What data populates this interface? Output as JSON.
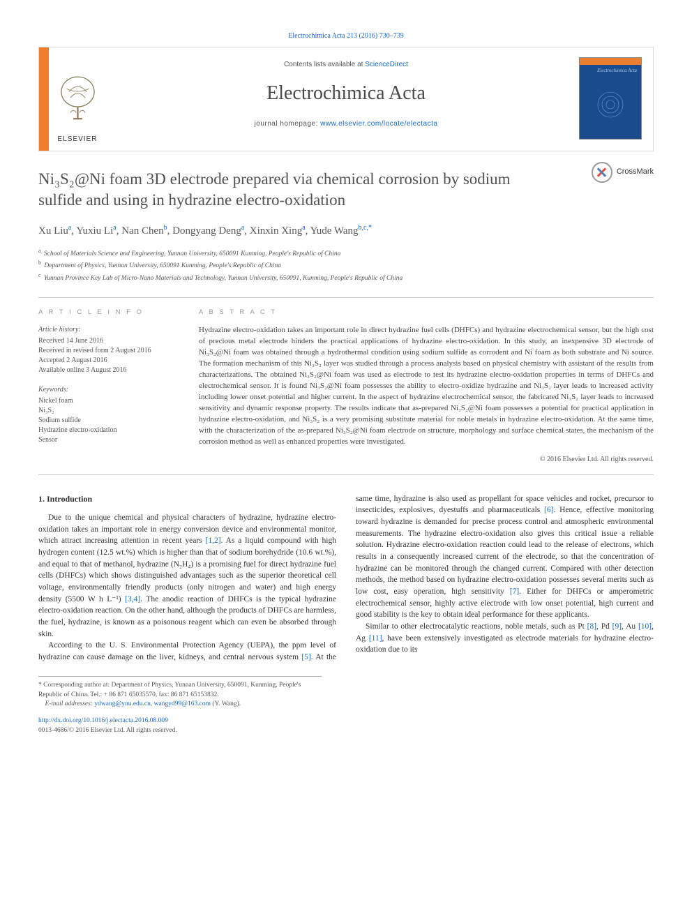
{
  "citation": {
    "prefix": "Electrochimica Acta 213 (2016) 730–739",
    "journal_link_text": "Electrochimica Acta"
  },
  "masthead": {
    "contents_prefix": "Contents lists available at ",
    "contents_link": "ScienceDirect",
    "journal_name": "Electrochimica Acta",
    "homepage_prefix": "journal homepage: ",
    "homepage_url": "www.elsevier.com/locate/electacta",
    "publisher_logo_name": "ELSEVIER",
    "cover_title": "Electrochimica Acta"
  },
  "crossmark": {
    "label": "CrossMark"
  },
  "article": {
    "title": "Ni₃S₂@Ni foam 3D electrode prepared via chemical corrosion by sodium sulfide and using in hydrazine electro-oxidation",
    "authors_html": "Xu Liu<sup>a</sup>, Yuxiu Li<sup>a</sup>, Nan Chen<sup>b</sup>, Dongyang Deng<sup>a</sup>, Xinxin Xing<sup>a</sup>, Yude Wang<sup>b,c,*</sup>",
    "affiliations": [
      {
        "sup": "a",
        "text": "School of Materials Science and Engineering, Yunnan University, 650091 Kunming, People's Republic of China"
      },
      {
        "sup": "b",
        "text": "Department of Physics, Yunnan University, 650091 Kunming, People's Republic of China"
      },
      {
        "sup": "c",
        "text": "Yunnan Province Key Lab of Micro-Nano Materials and Technology, Yunnan University, 650091, Kunming, People's Republic of China"
      }
    ]
  },
  "info": {
    "heading": "A R T I C L E  I N F O",
    "history_label": "Article history:",
    "history": [
      "Received 14 June 2016",
      "Received in revised form 2 August 2016",
      "Accepted 2 August 2016",
      "Available online 3 August 2016"
    ],
    "keywords_label": "Keywords:",
    "keywords": [
      "Nickel foam",
      "Ni₃S₂",
      "Sodium sulfide",
      "Hydrazine electro-oxidation",
      "Sensor"
    ]
  },
  "abstract": {
    "heading": "A B S T R A C T",
    "text": "Hydrazine electro-oxidation takes an important role in direct hydrazine fuel cells (DHFCs) and hydrazine electrochemical sensor, but the high cost of precious metal electrode hinders the practical applications of hydrazine electro-oxidation. In this study, an inexpensive 3D electrode of Ni₃S₂@Ni foam was obtained through a hydrothermal condition using sodium sulfide as corrodent and Ni foam as both substrate and Ni source. The formation mechanism of this Ni₃S₂ layer was studied through a process analysis based on physical chemistry with assistant of the results from characterizations. The obtained Ni₃S₂@Ni foam was used as electrode to test its hydrazine electro-oxidation properties in terms of DHFCs and electrochemical sensor. It is found Ni₃S₂@Ni foam possesses the ability to electro-oxidize hydrazine and Ni₃S₂ layer leads to increased activity including lower onset potential and higher current. In the aspect of hydrazine electrochemical sensor, the fabricated Ni₃S₂ layer leads to increased sensitivity and dynamic response property. The results indicate that as-prepared Ni₃S₂@Ni foam possesses a potential for practical application in hydrazine electro-oxidation, and Ni₃S₂ is a very promising substitute material for noble metals in hydrazine electro-oxidation. At the same time, with the characterization of the as-prepared Ni₃S₂@Ni foam electrode on structure, morphology and surface chemical states, the mechanism of the corrosion method as well as enhanced properties were investigated.",
    "copyright": "© 2016 Elsevier Ltd. All rights reserved."
  },
  "body": {
    "section_heading": "1. Introduction",
    "p1": "Due to the unique chemical and physical characters of hydrazine, hydrazine electro-oxidation takes an important role in energy conversion device and environmental monitor, which attract increasing attention in recent years [1,2]. As a liquid compound with high hydrogen content (12.5 wt.%) which is higher than that of sodium borehydride (10.6 wt.%), and equal to that of methanol, hydrazine (N₂H₄) is a promising fuel for direct hydrazine fuel cells (DHFCs) which shows distinguished advantages such as the superior theoretical cell voltage, environmentally friendly products (only nitrogen and water) and high energy density (5500 W h L⁻¹) [3,4]. The anodic reaction of DHFCs is the typical hydrazine electro-oxidation reaction. On the other hand, although the products of DHFCs are harmless, the fuel, hydrazine, is known as a poisonous reagent which can even be absorbed through skin.",
    "p2": "According to the U. S. Environmental Protection Agency (UEPA), the ppm level of hydrazine can cause damage on the liver, kidneys, and central nervous system [5]. At the same time, hydrazine is also used as propellant for space vehicles and rocket, precursor to insecticides, explosives, dyestuffs and pharmaceuticals [6]. Hence, effective monitoring toward hydrazine is demanded for precise process control and atmospheric environmental measurements. The hydrazine electro-oxidation also gives this critical issue a reliable solution. Hydrazine electro-oxidation reaction could lead to the release of electrons, which results in a consequently increased current of the electrode, so that the concentration of hydrazine can be monitored through the changed current. Compared with other detection methods, the method based on hydrazine electro-oxidation possesses several merits such as low cost, easy operation, high sensitivity [7]. Either for DHFCs or amperometric electrochemical sensor, highly active electrode with low onset potential, high current and good stability is the key to obtain ideal performance for these applicants.",
    "p3": "Similar to other electrocatalytic reactions, noble metals, such as Pt [8], Pd [9], Au [10], Ag [11], have been extensively investigated as electrode materials for hydrazine electro-oxidation due to its"
  },
  "footer": {
    "corr_marker": "*",
    "corr_text": "Corresponding author at: Department of Physics, Yunnan University, 650091, Kunming, People's Republic of China. Tel.: + 86 871 65035570, fax: 86 871 65153832.",
    "email_label": "E-mail addresses:",
    "email1": "ydwang@ynu.edu.cn",
    "email2": "wangyd99@163.com",
    "email_suffix": "(Y. Wang).",
    "doi": "http://dx.doi.org/10.1016/j.electacta.2016.08.009",
    "issn": "0013-4686/© 2016 Elsevier Ltd. All rights reserved."
  },
  "colors": {
    "link": "#1468c7",
    "accent_orange": "#ec7e30",
    "cover_blue": "#1a4b8c",
    "border_gray": "#d8d8d8",
    "text_gray": "#555555"
  }
}
